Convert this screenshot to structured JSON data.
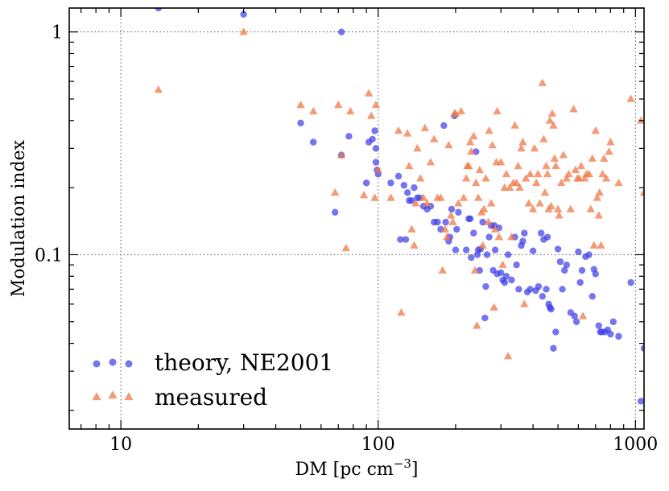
{
  "chart_data": {
    "type": "scatter",
    "xscale": "log",
    "yscale": "log",
    "xlim": [
      6.3,
      1080
    ],
    "ylim": [
      0.0165,
      1.28
    ],
    "xlabel_main": "DM [pc cm",
    "xlabel_sup": "−3",
    "xlabel_close": "]",
    "ylabel": "Modulation index",
    "x_ticks": [
      {
        "value": 10,
        "label": "10"
      },
      {
        "value": 100,
        "label": "100"
      },
      {
        "value": 1000,
        "label": "1000"
      }
    ],
    "y_ticks": [
      {
        "value": 0.1,
        "label": "0.1"
      },
      {
        "value": 1,
        "label": "1"
      }
    ],
    "grid": true,
    "legend_position": "lower-left",
    "series": [
      {
        "name": "theory, NE2001",
        "marker": "circle",
        "color": "#3a3ae8",
        "points": [
          [
            14,
            1.28
          ],
          [
            30,
            1.2
          ],
          [
            72,
            1.0
          ],
          [
            50,
            0.39
          ],
          [
            56,
            0.32
          ],
          [
            72,
            0.28
          ],
          [
            77,
            0.34
          ],
          [
            68,
            0.155
          ],
          [
            90,
            0.21
          ],
          [
            92,
            0.32
          ],
          [
            95,
            0.33
          ],
          [
            97,
            0.36
          ],
          [
            98,
            0.26
          ],
          [
            99,
            0.24
          ],
          [
            100,
            0.23
          ],
          [
            98,
            0.3
          ],
          [
            112,
            0.21
          ],
          [
            120,
            0.225
          ],
          [
            122,
            0.117
          ],
          [
            128,
            0.117
          ],
          [
            126,
            0.205
          ],
          [
            130,
            0.19
          ],
          [
            132,
            0.175
          ],
          [
            135,
            0.175
          ],
          [
            138,
            0.2
          ],
          [
            142,
            0.18
          ],
          [
            145,
            0.18
          ],
          [
            150,
            0.165
          ],
          [
            155,
            0.16
          ],
          [
            160,
            0.165
          ],
          [
            165,
            0.14
          ],
          [
            170,
            0.14
          ],
          [
            175,
            0.13
          ],
          [
            180,
            0.38
          ],
          [
            183,
            0.14
          ],
          [
            188,
            0.115
          ],
          [
            190,
            0.12
          ],
          [
            193,
            0.16
          ],
          [
            198,
            0.42
          ],
          [
            200,
            0.105
          ],
          [
            202,
            0.13
          ],
          [
            205,
            0.155
          ],
          [
            220,
            0.105
          ],
          [
            225,
            0.145
          ],
          [
            228,
            0.145
          ],
          [
            230,
            0.097
          ],
          [
            235,
            0.125
          ],
          [
            240,
            0.29
          ],
          [
            243,
            0.1
          ],
          [
            245,
            0.105
          ],
          [
            248,
            0.085
          ],
          [
            250,
            0.106
          ],
          [
            255,
            0.14
          ],
          [
            260,
            0.052
          ],
          [
            262,
            0.072
          ],
          [
            265,
            0.1
          ],
          [
            270,
            0.12
          ],
          [
            275,
            0.135
          ],
          [
            280,
            0.085
          ],
          [
            283,
            0.135
          ],
          [
            285,
            0.105
          ],
          [
            290,
            0.082
          ],
          [
            295,
            0.132
          ],
          [
            300,
            0.083
          ],
          [
            305,
            0.077
          ],
          [
            310,
            0.075
          ],
          [
            315,
            0.08
          ],
          [
            320,
            0.1
          ],
          [
            330,
            0.077
          ],
          [
            340,
            0.12
          ],
          [
            345,
            0.09
          ],
          [
            352,
            0.07
          ],
          [
            360,
            0.11
          ],
          [
            365,
            0.115
          ],
          [
            370,
            0.125
          ],
          [
            380,
            0.068
          ],
          [
            390,
            0.07
          ],
          [
            400,
            0.104
          ],
          [
            410,
            0.069
          ],
          [
            420,
            0.072
          ],
          [
            430,
            0.125
          ],
          [
            435,
            0.065
          ],
          [
            440,
            0.117
          ],
          [
            450,
            0.07
          ],
          [
            455,
            0.12
          ],
          [
            460,
            0.06
          ],
          [
            465,
            0.058
          ],
          [
            470,
            0.057
          ],
          [
            480,
            0.038
          ],
          [
            490,
            0.045
          ],
          [
            500,
            0.106
          ],
          [
            510,
            0.093
          ],
          [
            520,
            0.07
          ],
          [
            530,
            0.085
          ],
          [
            540,
            0.09
          ],
          [
            560,
            0.055
          ],
          [
            580,
            0.053
          ],
          [
            590,
            0.05
          ],
          [
            600,
            0.103
          ],
          [
            610,
            0.075
          ],
          [
            620,
            0.085
          ],
          [
            640,
            0.098
          ],
          [
            660,
            0.1
          ],
          [
            680,
            0.065
          ],
          [
            690,
            0.086
          ],
          [
            700,
            0.082
          ],
          [
            720,
            0.048
          ],
          [
            730,
            0.045
          ],
          [
            740,
            0.045
          ],
          [
            760,
            0.045
          ],
          [
            780,
            0.046
          ],
          [
            800,
            0.044
          ],
          [
            820,
            0.05
          ],
          [
            860,
            0.043
          ],
          [
            960,
            0.075
          ],
          [
            1050,
            0.022
          ],
          [
            1080,
            0.038
          ]
        ]
      },
      {
        "name": "measured",
        "marker": "triangle",
        "color": "#f07848",
        "points": [
          [
            14,
            0.55
          ],
          [
            30,
            1.0
          ],
          [
            50,
            0.47
          ],
          [
            56,
            0.44
          ],
          [
            68,
            0.19
          ],
          [
            70,
            0.47
          ],
          [
            72,
            0.28
          ],
          [
            75,
            0.107
          ],
          [
            78,
            0.44
          ],
          [
            92,
            0.53
          ],
          [
            88,
            0.185
          ],
          [
            94,
            0.42
          ],
          [
            98,
            0.47
          ],
          [
            97,
            0.18
          ],
          [
            100,
            0.24
          ],
          [
            112,
            0.18
          ],
          [
            120,
            0.36
          ],
          [
            123,
            0.055
          ],
          [
            130,
            0.35
          ],
          [
            132,
            0.25
          ],
          [
            135,
            0.13
          ],
          [
            138,
            0.11
          ],
          [
            140,
            0.17
          ],
          [
            142,
            0.3
          ],
          [
            146,
            0.22
          ],
          [
            150,
            0.18
          ],
          [
            152,
            0.37
          ],
          [
            155,
            0.17
          ],
          [
            160,
            0.26
          ],
          [
            165,
            0.33
          ],
          [
            170,
            0.18
          ],
          [
            175,
            0.18
          ],
          [
            178,
            0.085
          ],
          [
            182,
            0.13
          ],
          [
            185,
            0.12
          ],
          [
            188,
            0.31
          ],
          [
            192,
            0.15
          ],
          [
            195,
            0.14
          ],
          [
            198,
            0.43
          ],
          [
            200,
            0.43
          ],
          [
            205,
            0.17
          ],
          [
            210,
            0.44
          ],
          [
            215,
            0.18
          ],
          [
            220,
            0.22
          ],
          [
            222,
            0.25
          ],
          [
            225,
            0.25
          ],
          [
            228,
            0.32
          ],
          [
            230,
            0.29
          ],
          [
            235,
            0.34
          ],
          [
            238,
            0.085
          ],
          [
            240,
            0.21
          ],
          [
            242,
            0.048
          ],
          [
            245,
            0.18
          ],
          [
            248,
            0.24
          ],
          [
            252,
            0.155
          ],
          [
            255,
            0.11
          ],
          [
            258,
            0.16
          ],
          [
            262,
            0.22
          ],
          [
            268,
            0.14
          ],
          [
            270,
            0.36
          ],
          [
            275,
            0.17
          ],
          [
            278,
            0.31
          ],
          [
            282,
            0.058
          ],
          [
            285,
            0.13
          ],
          [
            288,
            0.26
          ],
          [
            290,
            0.44
          ],
          [
            295,
            0.12
          ],
          [
            300,
            0.26
          ],
          [
            305,
            0.09
          ],
          [
            310,
            0.2
          ],
          [
            315,
            0.23
          ],
          [
            320,
            0.035
          ],
          [
            325,
            0.2
          ],
          [
            330,
            0.12
          ],
          [
            335,
            0.21
          ],
          [
            340,
            0.38
          ],
          [
            345,
            0.21
          ],
          [
            350,
            0.25
          ],
          [
            355,
            0.2
          ],
          [
            360,
            0.3
          ],
          [
            365,
            0.32
          ],
          [
            370,
            0.06
          ],
          [
            375,
            0.22
          ],
          [
            385,
            0.17
          ],
          [
            390,
            0.23
          ],
          [
            400,
            0.16
          ],
          [
            405,
            0.3
          ],
          [
            412,
            0.21
          ],
          [
            418,
            0.23
          ],
          [
            425,
            0.17
          ],
          [
            435,
            0.59
          ],
          [
            440,
            0.33
          ],
          [
            445,
            0.19
          ],
          [
            450,
            0.25
          ],
          [
            455,
            0.23
          ],
          [
            460,
            0.16
          ],
          [
            465,
            0.4
          ],
          [
            470,
            0.165
          ],
          [
            475,
            0.43
          ],
          [
            480,
            0.38
          ],
          [
            485,
            0.27
          ],
          [
            490,
            0.25
          ],
          [
            500,
            0.16
          ],
          [
            505,
            0.15
          ],
          [
            515,
            0.21
          ],
          [
            525,
            0.28
          ],
          [
            540,
            0.22
          ],
          [
            550,
            0.23
          ],
          [
            560,
            0.16
          ],
          [
            575,
            0.45
          ],
          [
            585,
            0.24
          ],
          [
            595,
            0.22
          ],
          [
            605,
            0.22
          ],
          [
            615,
            0.25
          ],
          [
            625,
            0.053
          ],
          [
            635,
            0.22
          ],
          [
            645,
            0.23
          ],
          [
            660,
            0.23
          ],
          [
            670,
            0.16
          ],
          [
            680,
            0.27
          ],
          [
            690,
            0.11
          ],
          [
            700,
            0.36
          ],
          [
            710,
            0.18
          ],
          [
            720,
            0.15
          ],
          [
            725,
            0.19
          ],
          [
            735,
            0.11
          ],
          [
            745,
            0.23
          ],
          [
            755,
            0.27
          ],
          [
            770,
            0.22
          ],
          [
            790,
            0.29
          ],
          [
            800,
            0.32
          ],
          [
            860,
            0.21
          ],
          [
            960,
            0.5
          ],
          [
            1050,
            0.4
          ],
          [
            1080,
            0.19
          ]
        ]
      }
    ]
  }
}
